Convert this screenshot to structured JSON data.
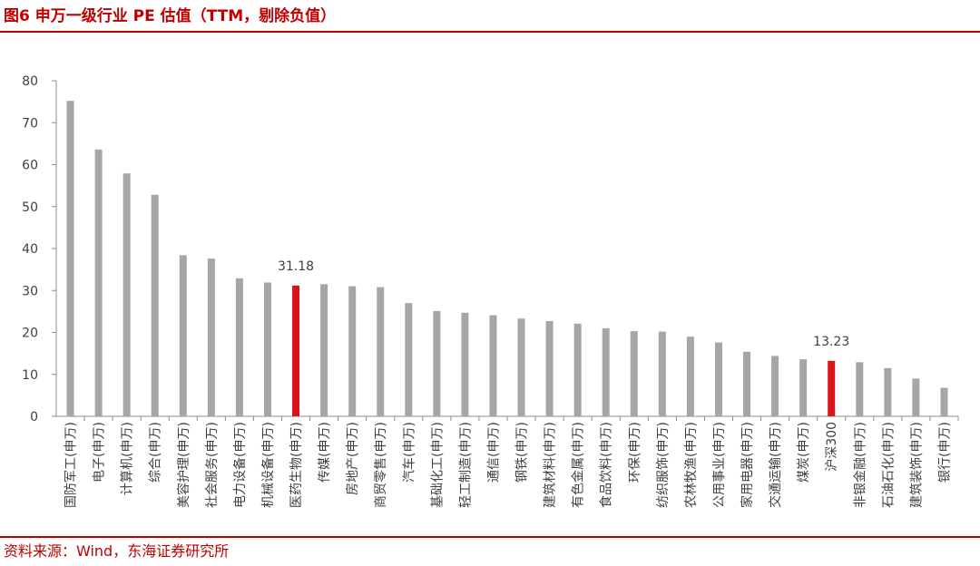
{
  "header": {
    "title": "图6  申万一级行业 PE 估值（TTM，剔除负值）"
  },
  "footer": {
    "source": "资料来源：Wind，东海证券研究所"
  },
  "colors": {
    "accent": "#c00000",
    "bar": "#a6a6a6",
    "highlight": "#d9141c",
    "axis": "#8c8c8c",
    "text": "#404040"
  },
  "chart_data": {
    "type": "bar",
    "categories": [
      "国防军工(申万)",
      "电子(申万)",
      "计算机(申万)",
      "综合(申万)",
      "美容护理(申万)",
      "社会服务(申万)",
      "电力设备(申万)",
      "机械设备(申万)",
      "医药生物(申万)",
      "传媒(申万)",
      "房地产(申万)",
      "商贸零售(申万)",
      "汽车(申万)",
      "基础化工(申万)",
      "轻工制造(申万)",
      "通信(申万)",
      "钢铁(申万)",
      "建筑材料(申万)",
      "有色金属(申万)",
      "食品饮料(申万)",
      "环保(申万)",
      "纺织服饰(申万)",
      "农林牧渔(申万)",
      "公用事业(申万)",
      "家用电器(申万)",
      "交通运输(申万)",
      "煤炭(申万)",
      "沪深300",
      "非银金融(申万)",
      "石油石化(申万)",
      "建筑装饰(申万)",
      "银行(申万)"
    ],
    "values": [
      75.2,
      63.6,
      57.9,
      52.8,
      38.4,
      37.6,
      32.9,
      31.9,
      31.18,
      31.5,
      31.0,
      30.8,
      27.0,
      25.1,
      24.7,
      24.1,
      23.3,
      22.7,
      22.1,
      21.0,
      20.3,
      20.2,
      19.0,
      17.6,
      15.4,
      14.4,
      13.6,
      13.23,
      12.9,
      11.5,
      9.0,
      6.8
    ],
    "highlight": [
      "医药生物(申万)",
      "沪深300"
    ],
    "data_labels": [
      {
        "category": "医药生物(申万)",
        "text": "31.18"
      },
      {
        "category": "沪深300",
        "text": "13.23"
      }
    ],
    "y_ticks": [
      "0",
      "10",
      "20",
      "30",
      "40",
      "50",
      "60",
      "70",
      "80"
    ],
    "ylim": [
      0,
      80
    ],
    "grid": false,
    "legend": "none",
    "title": "",
    "xlabel": "",
    "ylabel": ""
  }
}
